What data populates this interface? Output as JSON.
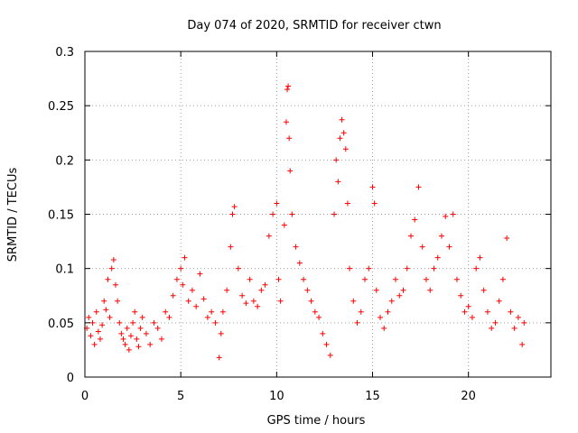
{
  "chart_data": {
    "type": "scatter",
    "title": "Day 074 of 2020, SRMTID for receiver ctwn",
    "xlabel": "GPS time / hours",
    "ylabel": "SRMTID / TECUs",
    "xlim": [
      0,
      24.3
    ],
    "ylim": [
      0,
      0.3
    ],
    "x_ticks": [
      0,
      5,
      10,
      15,
      20
    ],
    "x_tick_labels": [
      "0",
      "5",
      "10",
      "15",
      "20"
    ],
    "y_ticks": [
      0,
      0.05,
      0.1,
      0.15,
      0.2,
      0.25,
      0.3
    ],
    "y_tick_labels": [
      "0",
      "0.05",
      "0.1",
      "0.15",
      "0.2",
      "0.25",
      "0.3"
    ],
    "grid": true,
    "marker": "+",
    "marker_color": "#ff0000",
    "series": [
      {
        "name": "SRMTID",
        "points": [
          [
            0.1,
            0.045
          ],
          [
            0.2,
            0.055
          ],
          [
            0.3,
            0.038
          ],
          [
            0.4,
            0.05
          ],
          [
            0.5,
            0.03
          ],
          [
            0.6,
            0.06
          ],
          [
            0.7,
            0.042
          ],
          [
            0.8,
            0.035
          ],
          [
            0.9,
            0.048
          ],
          [
            1.0,
            0.07
          ],
          [
            1.1,
            0.062
          ],
          [
            1.2,
            0.09
          ],
          [
            1.3,
            0.055
          ],
          [
            1.4,
            0.1
          ],
          [
            1.5,
            0.108
          ],
          [
            1.6,
            0.085
          ],
          [
            1.7,
            0.07
          ],
          [
            1.8,
            0.05
          ],
          [
            1.9,
            0.04
          ],
          [
            2.0,
            0.035
          ],
          [
            2.1,
            0.03
          ],
          [
            2.2,
            0.045
          ],
          [
            2.3,
            0.025
          ],
          [
            2.4,
            0.038
          ],
          [
            2.5,
            0.05
          ],
          [
            2.6,
            0.06
          ],
          [
            2.7,
            0.035
          ],
          [
            2.8,
            0.028
          ],
          [
            2.9,
            0.045
          ],
          [
            3.0,
            0.055
          ],
          [
            3.2,
            0.04
          ],
          [
            3.4,
            0.03
          ],
          [
            3.6,
            0.05
          ],
          [
            3.8,
            0.045
          ],
          [
            4.0,
            0.035
          ],
          [
            4.2,
            0.06
          ],
          [
            4.4,
            0.055
          ],
          [
            4.6,
            0.075
          ],
          [
            4.8,
            0.09
          ],
          [
            5.0,
            0.1
          ],
          [
            5.1,
            0.085
          ],
          [
            5.2,
            0.11
          ],
          [
            5.4,
            0.07
          ],
          [
            5.6,
            0.08
          ],
          [
            5.8,
            0.065
          ],
          [
            6.0,
            0.095
          ],
          [
            6.2,
            0.072
          ],
          [
            6.4,
            0.055
          ],
          [
            6.6,
            0.06
          ],
          [
            6.8,
            0.05
          ],
          [
            7.0,
            0.018
          ],
          [
            7.1,
            0.04
          ],
          [
            7.2,
            0.06
          ],
          [
            7.4,
            0.08
          ],
          [
            7.6,
            0.12
          ],
          [
            7.7,
            0.15
          ],
          [
            7.8,
            0.157
          ],
          [
            8.0,
            0.1
          ],
          [
            8.2,
            0.075
          ],
          [
            8.4,
            0.068
          ],
          [
            8.6,
            0.09
          ],
          [
            8.8,
            0.07
          ],
          [
            9.0,
            0.065
          ],
          [
            9.2,
            0.08
          ],
          [
            9.4,
            0.085
          ],
          [
            9.6,
            0.13
          ],
          [
            9.8,
            0.15
          ],
          [
            10.0,
            0.16
          ],
          [
            10.1,
            0.09
          ],
          [
            10.2,
            0.07
          ],
          [
            10.4,
            0.14
          ],
          [
            10.5,
            0.235
          ],
          [
            10.55,
            0.265
          ],
          [
            10.6,
            0.268
          ],
          [
            10.65,
            0.22
          ],
          [
            10.7,
            0.19
          ],
          [
            10.8,
            0.15
          ],
          [
            11.0,
            0.12
          ],
          [
            11.2,
            0.105
          ],
          [
            11.4,
            0.09
          ],
          [
            11.6,
            0.08
          ],
          [
            11.8,
            0.07
          ],
          [
            12.0,
            0.06
          ],
          [
            12.2,
            0.055
          ],
          [
            12.4,
            0.04
          ],
          [
            12.6,
            0.03
          ],
          [
            12.8,
            0.02
          ],
          [
            13.0,
            0.15
          ],
          [
            13.1,
            0.2
          ],
          [
            13.2,
            0.18
          ],
          [
            13.3,
            0.22
          ],
          [
            13.4,
            0.237
          ],
          [
            13.5,
            0.225
          ],
          [
            13.6,
            0.21
          ],
          [
            13.7,
            0.16
          ],
          [
            13.8,
            0.1
          ],
          [
            14.0,
            0.07
          ],
          [
            14.2,
            0.05
          ],
          [
            14.4,
            0.06
          ],
          [
            14.6,
            0.09
          ],
          [
            14.8,
            0.1
          ],
          [
            15.0,
            0.175
          ],
          [
            15.1,
            0.16
          ],
          [
            15.2,
            0.08
          ],
          [
            15.4,
            0.055
          ],
          [
            15.6,
            0.045
          ],
          [
            15.8,
            0.06
          ],
          [
            16.0,
            0.07
          ],
          [
            16.2,
            0.09
          ],
          [
            16.4,
            0.075
          ],
          [
            16.6,
            0.08
          ],
          [
            16.8,
            0.1
          ],
          [
            17.0,
            0.13
          ],
          [
            17.2,
            0.145
          ],
          [
            17.4,
            0.175
          ],
          [
            17.6,
            0.12
          ],
          [
            17.8,
            0.09
          ],
          [
            18.0,
            0.08
          ],
          [
            18.2,
            0.1
          ],
          [
            18.4,
            0.11
          ],
          [
            18.6,
            0.13
          ],
          [
            18.8,
            0.148
          ],
          [
            19.0,
            0.12
          ],
          [
            19.2,
            0.15
          ],
          [
            19.4,
            0.09
          ],
          [
            19.6,
            0.075
          ],
          [
            19.8,
            0.06
          ],
          [
            20.0,
            0.065
          ],
          [
            20.2,
            0.055
          ],
          [
            20.4,
            0.1
          ],
          [
            20.6,
            0.11
          ],
          [
            20.8,
            0.08
          ],
          [
            21.0,
            0.06
          ],
          [
            21.2,
            0.045
          ],
          [
            21.4,
            0.05
          ],
          [
            21.6,
            0.07
          ],
          [
            21.8,
            0.09
          ],
          [
            22.0,
            0.128
          ],
          [
            22.2,
            0.06
          ],
          [
            22.4,
            0.045
          ],
          [
            22.6,
            0.055
          ],
          [
            22.8,
            0.03
          ],
          [
            22.9,
            0.05
          ]
        ]
      }
    ]
  }
}
